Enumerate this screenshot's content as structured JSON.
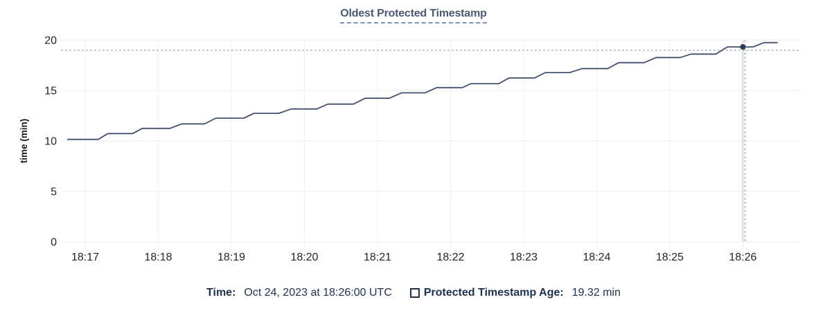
{
  "header": {
    "title": "Oldest Protected Timestamp"
  },
  "chart_data": {
    "type": "line",
    "title": "Oldest Protected Timestamp",
    "xlabel": "",
    "ylabel": "time (min)",
    "ylim": [
      0,
      20
    ],
    "grid": true,
    "legend_position": "bottom",
    "ytick_values": [
      0,
      5,
      10,
      15,
      20
    ],
    "ytick_labels": [
      "0",
      "5",
      "10",
      "15",
      "20"
    ],
    "xtick_labels": [
      "18:17",
      "18:18",
      "18:19",
      "18:20",
      "18:21",
      "18:22",
      "18:23",
      "18:24",
      "18:25",
      "18:26"
    ],
    "xtick_offsets_min": [
      0,
      1,
      2,
      3,
      4,
      5,
      6,
      7,
      8,
      9
    ],
    "x_domain_offsets_min": [
      -0.33,
      9.79
    ],
    "series": [
      {
        "name": "Protected Timestamp Age",
        "unit": "min",
        "points_t_v": [
          [
            -0.24,
            10.16
          ],
          [
            0.18,
            10.16
          ],
          [
            0.31,
            10.73
          ],
          [
            0.65,
            10.73
          ],
          [
            0.78,
            11.25
          ],
          [
            1.16,
            11.25
          ],
          [
            1.32,
            11.69
          ],
          [
            1.63,
            11.69
          ],
          [
            1.79,
            12.26
          ],
          [
            2.17,
            12.26
          ],
          [
            2.31,
            12.74
          ],
          [
            2.65,
            12.74
          ],
          [
            2.82,
            13.17
          ],
          [
            3.17,
            13.17
          ],
          [
            3.32,
            13.65
          ],
          [
            3.67,
            13.65
          ],
          [
            3.83,
            14.23
          ],
          [
            4.16,
            14.23
          ],
          [
            4.33,
            14.77
          ],
          [
            4.65,
            14.77
          ],
          [
            4.81,
            15.29
          ],
          [
            5.16,
            15.29
          ],
          [
            5.28,
            15.68
          ],
          [
            5.66,
            15.68
          ],
          [
            5.8,
            16.25
          ],
          [
            6.15,
            16.25
          ],
          [
            6.3,
            16.78
          ],
          [
            6.63,
            16.78
          ],
          [
            6.8,
            17.17
          ],
          [
            7.15,
            17.17
          ],
          [
            7.3,
            17.76
          ],
          [
            7.65,
            17.76
          ],
          [
            7.81,
            18.27
          ],
          [
            8.14,
            18.27
          ],
          [
            8.29,
            18.61
          ],
          [
            8.63,
            18.61
          ],
          [
            8.79,
            19.32
          ],
          [
            9.14,
            19.32
          ],
          [
            9.29,
            19.75
          ],
          [
            9.47,
            19.75
          ]
        ]
      }
    ],
    "hover": {
      "snapped_point": {
        "t_offset_min": 9.0,
        "time_label": "18:26:00",
        "value_min": 19.32
      },
      "crosshair": {
        "t_offset_min": 9.03,
        "value_min": 19.0
      }
    }
  },
  "legend": {
    "time_label": "Time:",
    "time_value": "Oct 24, 2023 at 18:26:00 UTC",
    "series_swatch": "hollow-square-swatch",
    "series_label": "Protected Timestamp Age:",
    "series_value": "19.32 min"
  },
  "colors": {
    "title_text": "#4a5a75",
    "title_underline": "#7d91ac",
    "series_line": "#42506e",
    "hover_dot": "#2b3854",
    "crosshair_dash": "#9aaab6",
    "hover_guideline": "#dedede",
    "grid_horizontal": "#ebebeb",
    "grid_vertical": "#f0f0f0",
    "tick_text": "#242424",
    "axis_title_text": "#1a1a1a",
    "legend_text": "#1c304f"
  }
}
